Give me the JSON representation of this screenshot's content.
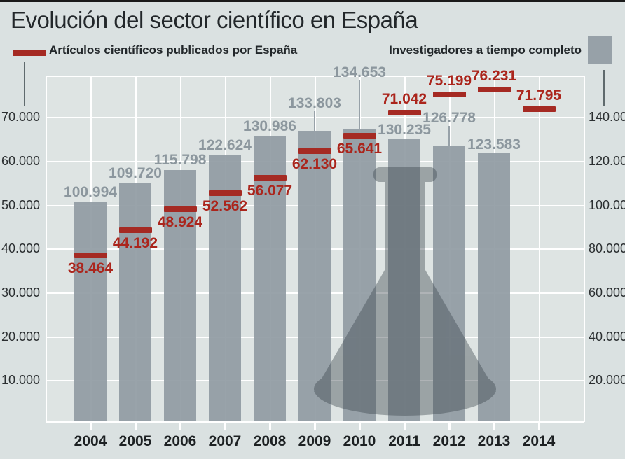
{
  "title": "Evolución del sector científico en España",
  "legend": {
    "articles": "Artículos científicos publicados por España",
    "researchers": "Investigadores a tiempo completo"
  },
  "colors": {
    "page_bg": "#dae1e1",
    "panel_bg": "#dee4e3",
    "top_rule": "#1a1a1a",
    "bar": "#97a1a8",
    "bar_label": "#8c979e",
    "marker": "#a52a23",
    "marker_label": "#ab251c",
    "grid": "#ffffff",
    "flask": "#39444a",
    "axis_text": "#2b2f31"
  },
  "axes": {
    "left_ticks": [
      "70.000",
      "60.000",
      "50.000",
      "40.000",
      "30.000",
      "20.000",
      "10.000"
    ],
    "right_ticks": [
      "140.000",
      "120.000",
      "100.000",
      "80.000",
      "60.000",
      "40.000",
      "20.000"
    ],
    "years": [
      "2004",
      "2005",
      "2006",
      "2007",
      "2008",
      "2009",
      "2010",
      "2011",
      "2012",
      "2013",
      "2014"
    ]
  },
  "chart_data": {
    "type": "bar",
    "title": "Evolución del sector científico en España",
    "x": [
      "2004",
      "2005",
      "2006",
      "2007",
      "2008",
      "2009",
      "2010",
      "2011",
      "2012",
      "2013",
      "2014"
    ],
    "series": [
      {
        "name": "Investigadores a tiempo completo",
        "type": "bar",
        "axis": "right",
        "values": [
          100994,
          109720,
          115798,
          122624,
          130986,
          133803,
          134653,
          130235,
          126778,
          123583,
          null
        ],
        "labels": [
          "100.994",
          "109.720",
          "115.798",
          "122.624",
          "130.986",
          "133.803",
          "134.653",
          "130.235",
          "126.778",
          "123.583",
          ""
        ]
      },
      {
        "name": "Artículos científicos publicados por España",
        "type": "marker",
        "axis": "left",
        "values": [
          38464,
          44192,
          48924,
          52562,
          56077,
          62130,
          65641,
          71042,
          75199,
          76231,
          71795
        ],
        "labels": [
          "38.464",
          "44.192",
          "48.924",
          "52.562",
          "56.077",
          "62.130",
          "65.641",
          "71.042",
          "75.199",
          "76.231",
          "71.795"
        ]
      }
    ],
    "left_axis": {
      "min": 0,
      "max": 79000,
      "tick_step": 10000,
      "tick_labels": [
        "10.000",
        "20.000",
        "30.000",
        "40.000",
        "50.000",
        "60.000",
        "70.000"
      ]
    },
    "right_axis": {
      "min": 0,
      "max": 158000,
      "tick_step": 20000,
      "tick_labels": [
        "20.000",
        "40.000",
        "60.000",
        "80.000",
        "100.000",
        "120.000",
        "140.000"
      ]
    },
    "grid": true,
    "legend_position": "top",
    "background_watermark": "erlenmeyer-flask"
  }
}
